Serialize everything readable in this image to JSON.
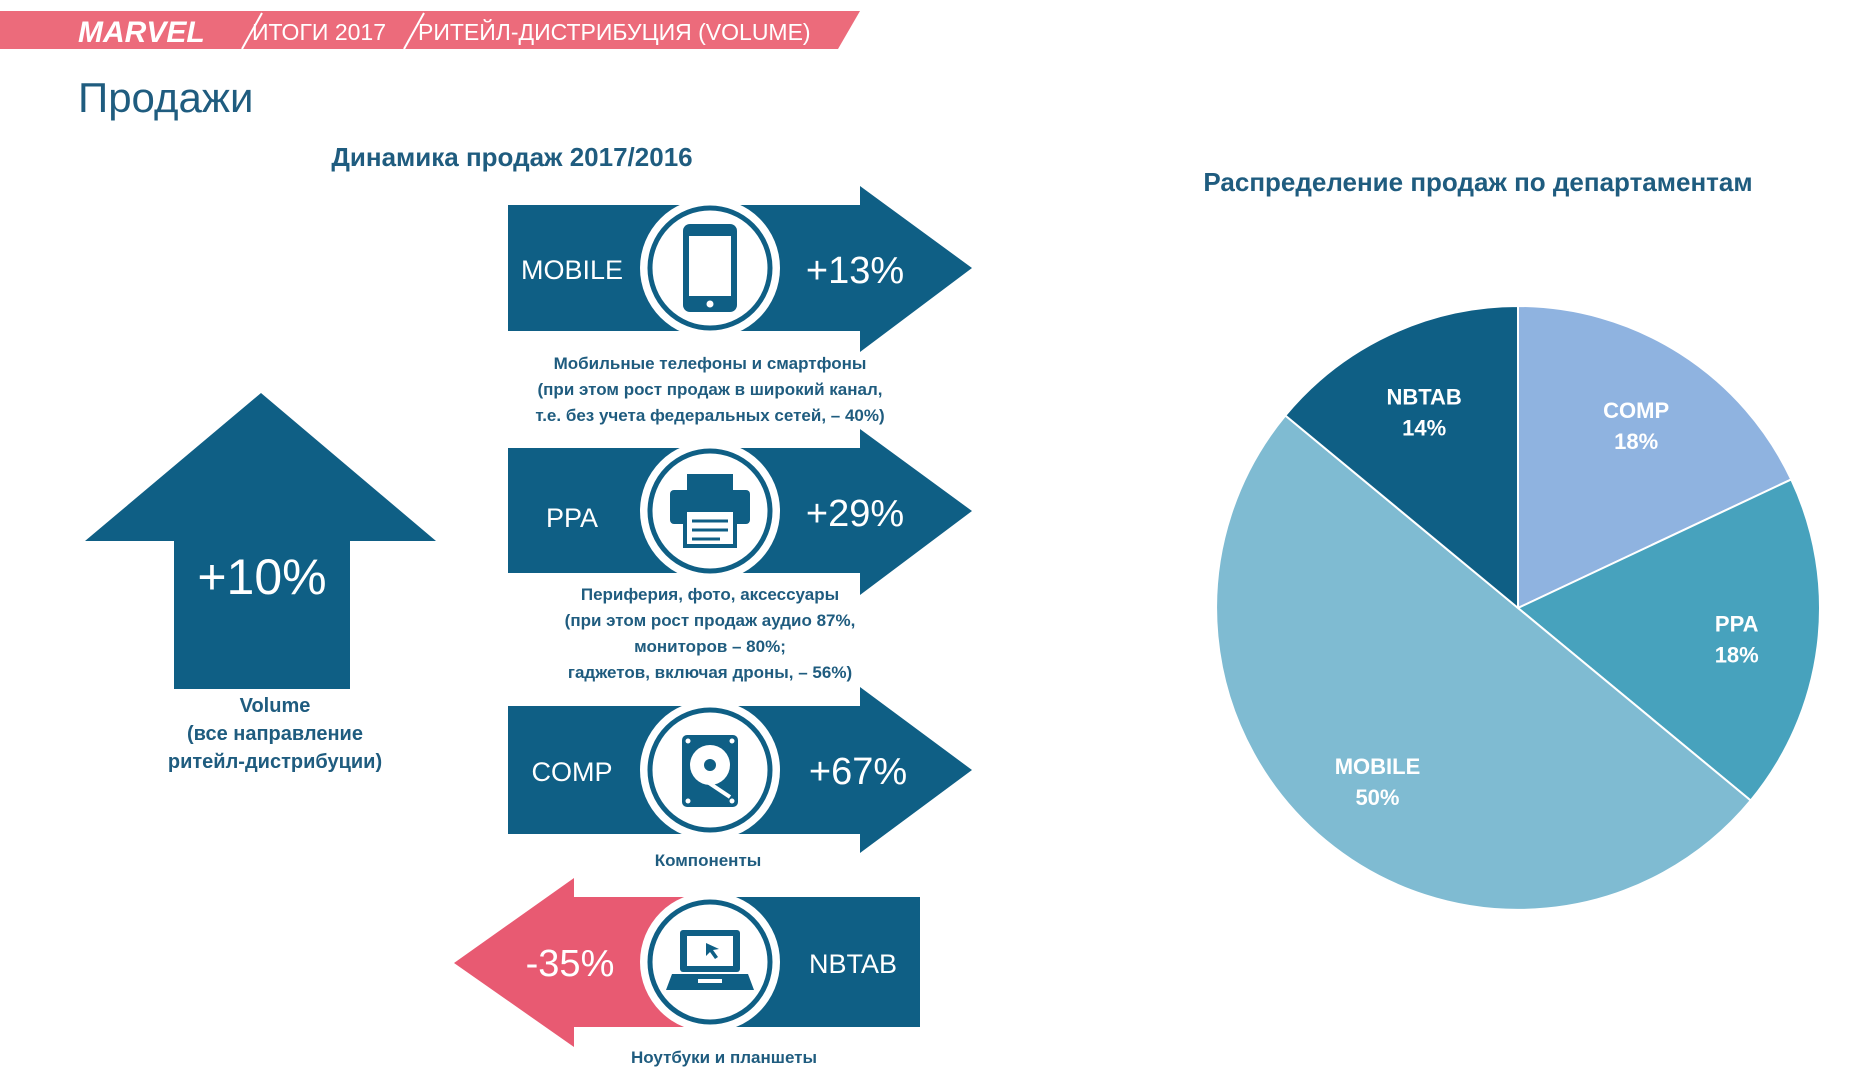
{
  "header": {
    "logo": "MARVEL",
    "crumb1": "ИТОГИ 2017",
    "crumb2": "РИТЕЙЛ-ДИСТРИБУЦИЯ (VOLUME)"
  },
  "page_title": "Продажи",
  "left_title": "Динамика продаж 2017/2016",
  "right_title": "Распределение продаж по департаментам",
  "volume": {
    "value": "+10%",
    "caption": [
      "Volume",
      "(все направление",
      "ритейл-дистрибуции)"
    ]
  },
  "departments": [
    {
      "name": "MOBILE",
      "change": "+13%",
      "icon": "smartphone-icon",
      "caption": [
        "Мобильные телефоны и смартфоны",
        "(при этом рост продаж в широкий канал,",
        "т.е. без учета федеральных сетей, – 40%)"
      ]
    },
    {
      "name": "PPA",
      "change": "+29%",
      "icon": "printer-icon",
      "caption": [
        "Периферия, фото, аксессуары",
        "(при этом рост продаж аудио 87%,",
        "мониторов – 80%;",
        "гаджетов, включая дроны, – 56%)"
      ]
    },
    {
      "name": "COMP",
      "change": "+67%",
      "icon": "hard-drive-icon",
      "caption": [
        "Компоненты"
      ]
    },
    {
      "name": "NBTAB",
      "change": "-35%",
      "icon": "laptop-icon",
      "caption": [
        "Ноутбуки и планшеты"
      ]
    }
  ],
  "colors": {
    "primary": "#0f5f85",
    "negative": "#e85a72",
    "title": "#1f5c7f"
  },
  "chart_data": {
    "type": "pie",
    "title": "Распределение продаж по департаментам",
    "slices": [
      {
        "label": "COMP",
        "value": 18,
        "value_label": "18%",
        "color": "#8fb3e0"
      },
      {
        "label": "PPA",
        "value": 18,
        "value_label": "18%",
        "color": "#47a2bd"
      },
      {
        "label": "MOBILE",
        "value": 50,
        "value_label": "50%",
        "color": "#7fbbd2"
      },
      {
        "label": "NBTAB",
        "value": 14,
        "value_label": "14%",
        "color": "#0f5f85"
      }
    ],
    "start": "12 o'clock",
    "direction": "clockwise",
    "labels_inside": true
  }
}
